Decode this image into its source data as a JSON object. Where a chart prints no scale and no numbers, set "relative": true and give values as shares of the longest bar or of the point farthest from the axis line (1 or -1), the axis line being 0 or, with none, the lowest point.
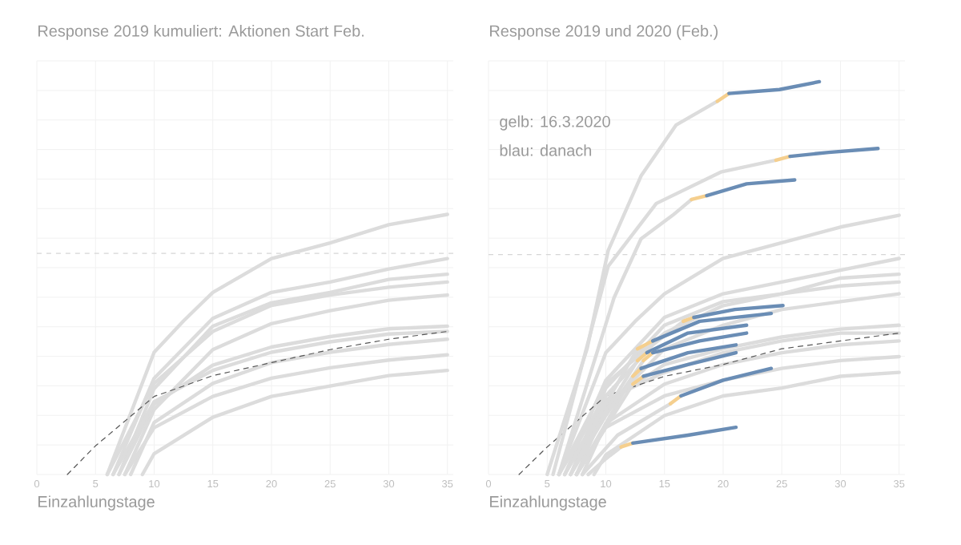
{
  "chart_data": [
    {
      "type": "line",
      "title": "Response 2019 kumuliert: Aktionen Start Feb.",
      "xlabel": "Einzahlungstage",
      "relative": true,
      "grid": true,
      "xlim": [
        0,
        35.5
      ],
      "xticks": [
        0,
        5,
        10,
        15,
        20,
        25,
        30,
        35
      ],
      "ref_lines": [
        {
          "axis": "y",
          "value": 0.85,
          "color": "#d6d6d6",
          "line_style": "dashed"
        }
      ],
      "series": [
        {
          "color": "#dcdcdc",
          "x": [
            6,
            10,
            12.5,
            15,
            20,
            25,
            30,
            35
          ],
          "values": [
            0,
            0.47,
            0.59,
            0.7,
            0.83,
            0.89,
            0.96,
            1.0
          ]
        },
        {
          "color": "#dcdcdc",
          "x": [
            6.5,
            10,
            15,
            20,
            25,
            30,
            35
          ],
          "values": [
            0,
            0.37,
            0.6,
            0.7,
            0.74,
            0.79,
            0.83
          ]
        },
        {
          "color": "#dcdcdc",
          "x": [
            7,
            10,
            15,
            20,
            25,
            30,
            35
          ],
          "values": [
            0,
            0.33,
            0.57,
            0.66,
            0.7,
            0.75,
            0.77
          ]
        },
        {
          "color": "#dcdcdc",
          "x": [
            6,
            10,
            15,
            20,
            25,
            30,
            35
          ],
          "values": [
            0,
            0.35,
            0.55,
            0.65,
            0.69,
            0.72,
            0.74
          ]
        },
        {
          "color": "#dcdcdc",
          "x": [
            7.5,
            10,
            15,
            20,
            25,
            30,
            35
          ],
          "values": [
            0,
            0.25,
            0.48,
            0.58,
            0.63,
            0.67,
            0.69
          ]
        },
        {
          "color": "#dcdcdc",
          "x": [
            7,
            10,
            15,
            20,
            25,
            30,
            35
          ],
          "values": [
            0,
            0.27,
            0.42,
            0.49,
            0.53,
            0.56,
            0.57
          ]
        },
        {
          "color": "#dcdcdc",
          "x": [
            6.5,
            10,
            15,
            20,
            25,
            30,
            35
          ],
          "values": [
            0,
            0.28,
            0.4,
            0.47,
            0.51,
            0.54,
            0.55
          ]
        },
        {
          "color": "#dcdcdc",
          "x": [
            8,
            10,
            15,
            20,
            25,
            30,
            35
          ],
          "values": [
            0,
            0.2,
            0.35,
            0.43,
            0.47,
            0.5,
            0.52
          ]
        },
        {
          "color": "#dcdcdc",
          "x": [
            7.5,
            10,
            15,
            20,
            25,
            30,
            35
          ],
          "values": [
            0,
            0.18,
            0.3,
            0.37,
            0.41,
            0.44,
            0.46
          ]
        },
        {
          "color": "#dcdcdc",
          "x": [
            9,
            10,
            15,
            20,
            25,
            30,
            35
          ],
          "values": [
            0,
            0.08,
            0.22,
            0.3,
            0.34,
            0.38,
            0.4
          ]
        },
        {
          "color": "#555555",
          "line_style": "dashed",
          "x": [
            2.6,
            5,
            10,
            15,
            20,
            25,
            30,
            35
          ],
          "values": [
            0,
            0.11,
            0.3,
            0.38,
            0.43,
            0.48,
            0.52,
            0.55
          ]
        }
      ]
    },
    {
      "type": "line",
      "title": "Response 2019 und 2020 (Feb.)",
      "xlabel": "Einzahlungstage",
      "relative": true,
      "grid": true,
      "xlim": [
        0,
        35.5
      ],
      "xticks": [
        0,
        5,
        10,
        15,
        20,
        25,
        30,
        35
      ],
      "annotations": [
        "gelb: 16.3.2020",
        "blau: danach"
      ],
      "ref_lines": [
        {
          "axis": "y",
          "value": 0.56,
          "color": "#d6d6d6",
          "line_style": "dashed"
        }
      ],
      "series": [
        {
          "color": "#dcdcdc",
          "x": [
            6,
            10,
            12.5,
            15,
            20,
            25,
            30,
            35
          ],
          "values": [
            0,
            0.31,
            0.39,
            0.46,
            0.55,
            0.59,
            0.63,
            0.66
          ]
        },
        {
          "color": "#dcdcdc",
          "x": [
            6.5,
            10,
            15,
            20,
            25,
            30,
            35
          ],
          "values": [
            0,
            0.24,
            0.4,
            0.46,
            0.49,
            0.52,
            0.55
          ]
        },
        {
          "color": "#dcdcdc",
          "x": [
            7,
            10,
            15,
            20,
            25,
            30,
            35
          ],
          "values": [
            0,
            0.22,
            0.38,
            0.44,
            0.46,
            0.5,
            0.51
          ]
        },
        {
          "color": "#dcdcdc",
          "x": [
            6,
            10,
            15,
            20,
            25,
            30,
            35
          ],
          "values": [
            0,
            0.23,
            0.36,
            0.43,
            0.46,
            0.48,
            0.49
          ]
        },
        {
          "color": "#dcdcdc",
          "x": [
            7.5,
            10,
            15,
            20,
            25,
            30,
            35
          ],
          "values": [
            0,
            0.17,
            0.32,
            0.38,
            0.42,
            0.44,
            0.46
          ]
        },
        {
          "color": "#dcdcdc",
          "x": [
            7,
            10,
            15,
            20,
            25,
            30,
            35
          ],
          "values": [
            0,
            0.18,
            0.28,
            0.32,
            0.35,
            0.37,
            0.38
          ]
        },
        {
          "color": "#dcdcdc",
          "x": [
            6.5,
            10,
            15,
            20,
            25,
            30,
            35
          ],
          "values": [
            0,
            0.19,
            0.26,
            0.31,
            0.34,
            0.36,
            0.36
          ]
        },
        {
          "color": "#dcdcdc",
          "x": [
            8,
            10,
            15,
            20,
            25,
            30,
            35
          ],
          "values": [
            0,
            0.13,
            0.23,
            0.28,
            0.31,
            0.33,
            0.34
          ]
        },
        {
          "color": "#dcdcdc",
          "x": [
            7.5,
            10,
            15,
            20,
            25,
            30,
            35
          ],
          "values": [
            0,
            0.12,
            0.2,
            0.24,
            0.27,
            0.29,
            0.3
          ]
        },
        {
          "color": "#dcdcdc",
          "x": [
            9,
            10,
            15,
            20,
            25,
            30,
            35
          ],
          "values": [
            0,
            0.05,
            0.15,
            0.2,
            0.22,
            0.25,
            0.26
          ]
        },
        {
          "color": "#555555",
          "line_style": "dashed",
          "x": [
            2.6,
            5,
            10,
            15,
            20,
            25,
            30,
            35
          ],
          "values": [
            0,
            0.07,
            0.2,
            0.25,
            0.28,
            0.32,
            0.34,
            0.36
          ]
        },
        {
          "color": "#dcdcdc",
          "x": [
            5,
            8.4,
            10.2,
            13,
            16,
            19.5
          ],
          "values": [
            0,
            0.32,
            0.57,
            0.76,
            0.89,
            0.95
          ]
        },
        {
          "color": "#f5cf8e",
          "x": [
            19.5,
            20.5
          ],
          "values": [
            0.95,
            0.97
          ]
        },
        {
          "color": "#6a8db5",
          "x": [
            20.5,
            24.8,
            28.2
          ],
          "values": [
            0.97,
            0.98,
            1.0
          ]
        },
        {
          "color": "#dcdcdc",
          "x": [
            5.5,
            10.2,
            14.3,
            19.8,
            24.5
          ],
          "values": [
            0,
            0.53,
            0.69,
            0.77,
            0.8
          ]
        },
        {
          "color": "#f5cf8e",
          "x": [
            24.5,
            25.7
          ],
          "values": [
            0.8,
            0.81
          ]
        },
        {
          "color": "#6a8db5",
          "x": [
            25.7,
            29,
            33.2
          ],
          "values": [
            0.81,
            0.82,
            0.83
          ]
        },
        {
          "color": "#dcdcdc",
          "x": [
            6,
            10.7,
            13,
            15.7,
            17.3
          ],
          "values": [
            0,
            0.45,
            0.6,
            0.66,
            0.7
          ]
        },
        {
          "color": "#f5cf8e",
          "x": [
            17.3,
            18.6
          ],
          "values": [
            0.7,
            0.71
          ]
        },
        {
          "color": "#6a8db5",
          "x": [
            18.6,
            22,
            26.1
          ],
          "values": [
            0.71,
            0.74,
            0.75
          ]
        },
        {
          "color": "#dcdcdc",
          "x": [
            6,
            10,
            14,
            16.6
          ],
          "values": [
            0,
            0.2,
            0.33,
            0.39
          ]
        },
        {
          "color": "#f5cf8e",
          "x": [
            16.6,
            17.5
          ],
          "values": [
            0.39,
            0.4
          ]
        },
        {
          "color": "#6a8db5",
          "x": [
            17.5,
            21,
            25.1
          ],
          "values": [
            0.4,
            0.42,
            0.43
          ]
        },
        {
          "color": "#dcdcdc",
          "x": [
            6.5,
            10,
            12.7
          ],
          "values": [
            0,
            0.18,
            0.32
          ]
        },
        {
          "color": "#f5cf8e",
          "x": [
            12.7,
            14
          ],
          "values": [
            0.32,
            0.34
          ]
        },
        {
          "color": "#6a8db5",
          "x": [
            14,
            18,
            24.1
          ],
          "values": [
            0.34,
            0.39,
            0.41
          ]
        },
        {
          "color": "#dcdcdc",
          "x": [
            7,
            10,
            12.7
          ],
          "values": [
            0,
            0.16,
            0.29
          ]
        },
        {
          "color": "#f5cf8e",
          "x": [
            12.7,
            13.5
          ],
          "values": [
            0.29,
            0.31
          ]
        },
        {
          "color": "#6a8db5",
          "x": [
            13.5,
            17,
            22
          ],
          "values": [
            0.31,
            0.36,
            0.38
          ]
        },
        {
          "color": "#dcdcdc",
          "x": [
            7,
            10,
            13.2
          ],
          "values": [
            0,
            0.15,
            0.29
          ]
        },
        {
          "color": "#f5cf8e",
          "x": [
            13.2,
            14
          ],
          "values": [
            0.29,
            0.31
          ]
        },
        {
          "color": "#6a8db5",
          "x": [
            14,
            18,
            22
          ],
          "values": [
            0.31,
            0.34,
            0.36
          ]
        },
        {
          "color": "#dcdcdc",
          "x": [
            7.5,
            10,
            12.3
          ],
          "values": [
            0,
            0.13,
            0.25
          ]
        },
        {
          "color": "#f5cf8e",
          "x": [
            12.3,
            13
          ],
          "values": [
            0.25,
            0.27
          ]
        },
        {
          "color": "#6a8db5",
          "x": [
            13,
            17,
            21.1
          ],
          "values": [
            0.27,
            0.31,
            0.33
          ]
        },
        {
          "color": "#dcdcdc",
          "x": [
            7.5,
            10,
            12.3
          ],
          "values": [
            0,
            0.12,
            0.23
          ]
        },
        {
          "color": "#f5cf8e",
          "x": [
            12.3,
            13.2
          ],
          "values": [
            0.23,
            0.25
          ]
        },
        {
          "color": "#6a8db5",
          "x": [
            13.2,
            17,
            21.1
          ],
          "values": [
            0.25,
            0.28,
            0.31
          ]
        },
        {
          "color": "#dcdcdc",
          "x": [
            8,
            11,
            15.5
          ],
          "values": [
            0,
            0.1,
            0.18
          ]
        },
        {
          "color": "#f5cf8e",
          "x": [
            15.5,
            16.4
          ],
          "values": [
            0.18,
            0.2
          ]
        },
        {
          "color": "#6a8db5",
          "x": [
            16.4,
            20,
            24.1
          ],
          "values": [
            0.2,
            0.24,
            0.27
          ]
        },
        {
          "color": "#dcdcdc",
          "x": [
            8.5,
            10,
            11.3
          ],
          "values": [
            0,
            0.04,
            0.07
          ]
        },
        {
          "color": "#f5cf8e",
          "x": [
            11.3,
            12.3
          ],
          "values": [
            0.07,
            0.08
          ]
        },
        {
          "color": "#6a8db5",
          "x": [
            12.3,
            17,
            21.1
          ],
          "values": [
            0.08,
            0.1,
            0.12
          ]
        }
      ]
    }
  ]
}
